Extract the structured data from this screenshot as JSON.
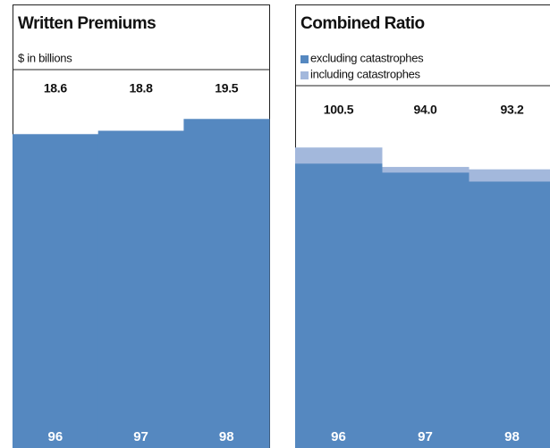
{
  "chart_data": [
    {
      "type": "bar",
      "title": "Written Premiums",
      "subtitle": "$ in billions",
      "categories": [
        "96",
        "97",
        "98"
      ],
      "values": [
        18.6,
        18.8,
        19.5
      ],
      "color": "#5588c0",
      "ylim": [
        0,
        22
      ]
    },
    {
      "type": "overlay-bar",
      "title": "Combined Ratio",
      "categories": [
        "96",
        "97",
        "98"
      ],
      "series": [
        {
          "name": "excluding catastrophes",
          "color": "#5588c0",
          "values": [
            95.1,
            92.1,
            89.1
          ]
        },
        {
          "name": "including catastrophes",
          "color": "#a3b8dc",
          "values": [
            100.5,
            94.0,
            93.2
          ],
          "value_labels": [
            "100.5",
            "94.0",
            "93.2"
          ]
        }
      ],
      "ylim": [
        0,
        117
      ]
    }
  ]
}
